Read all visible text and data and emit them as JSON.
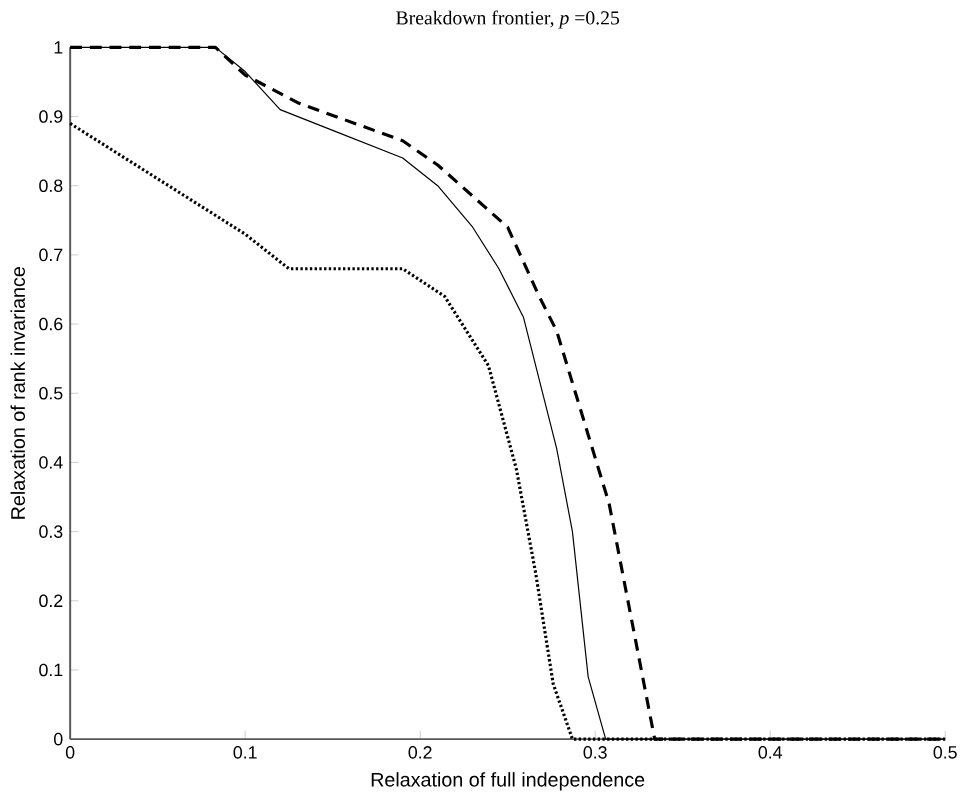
{
  "chart_data": {
    "type": "line",
    "title": "Breakdown frontier, *p* =0.25",
    "xlabel": "Relaxation of full independence",
    "ylabel": "Relaxation of rank invariance",
    "xlim": [
      0,
      0.5
    ],
    "ylim": [
      0,
      1
    ],
    "xticks": [
      0,
      0.1,
      0.2,
      0.3,
      0.4,
      0.5
    ],
    "yticks": [
      0,
      0.1,
      0.2,
      0.3,
      0.4,
      0.5,
      0.6,
      0.7,
      0.8,
      0.9,
      1
    ],
    "marker": "none",
    "series": [
      {
        "color": "#000000",
        "line_style": "solid",
        "x": [
          0,
          0.083,
          0.1,
          0.12,
          0.15,
          0.19,
          0.21,
          0.23,
          0.245,
          0.259,
          0.278,
          0.287,
          0.296,
          0.306,
          0.5
        ],
        "values": [
          1,
          1,
          0.965,
          0.91,
          0.88,
          0.84,
          0.8,
          0.74,
          0.68,
          0.61,
          0.42,
          0.3,
          0.09,
          0,
          0
        ]
      },
      {
        "color": "#000000",
        "line_style": "dashed",
        "x": [
          0,
          0.083,
          0.1,
          0.13,
          0.19,
          0.21,
          0.25,
          0.268,
          0.278,
          0.308,
          0.334,
          0.5
        ],
        "values": [
          1,
          1,
          0.96,
          0.92,
          0.865,
          0.83,
          0.74,
          0.64,
          0.59,
          0.34,
          0,
          0
        ]
      },
      {
        "color": "#000000",
        "line_style": "dotted",
        "x": [
          0,
          0.05,
          0.1,
          0.125,
          0.19,
          0.214,
          0.239,
          0.255,
          0.266,
          0.276,
          0.287,
          0.5
        ],
        "values": [
          0.89,
          0.81,
          0.73,
          0.68,
          0.68,
          0.64,
          0.54,
          0.39,
          0.24,
          0.08,
          0,
          0
        ]
      }
    ]
  }
}
